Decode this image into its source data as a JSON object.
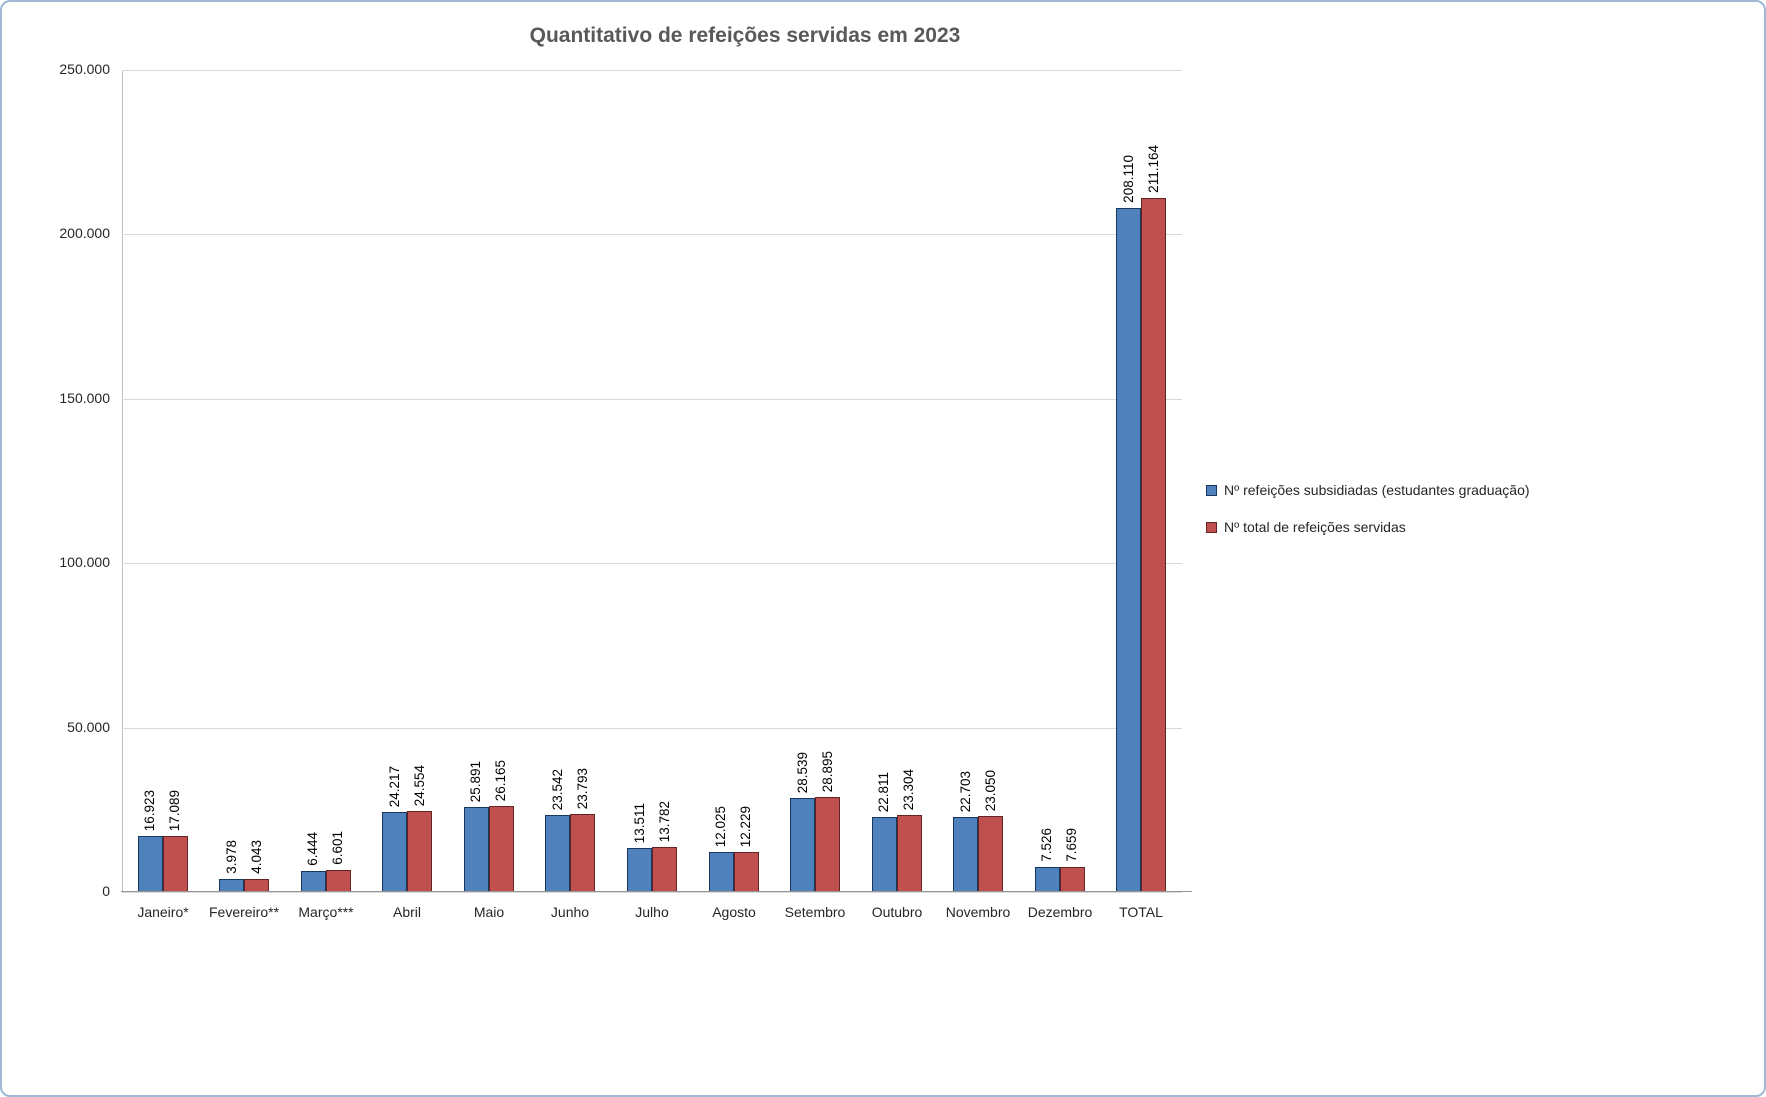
{
  "chart_data": {
    "type": "bar",
    "title": "Quantitativo de refeições servidas em 2023",
    "xlabel": "",
    "ylabel": "",
    "ylim": [
      0,
      250000
    ],
    "grid": true,
    "legend_position": "right",
    "yticks": [
      {
        "value": 0,
        "label": "0"
      },
      {
        "value": 50000,
        "label": "50.000"
      },
      {
        "value": 100000,
        "label": "100.000"
      },
      {
        "value": 150000,
        "label": "150.000"
      },
      {
        "value": 200000,
        "label": "200.000"
      },
      {
        "value": 250000,
        "label": "250.000"
      }
    ],
    "categories": [
      "Janeiro*",
      "Fevereiro**",
      "Março***",
      "Abril",
      "Maio",
      "Junho",
      "Julho",
      "Agosto",
      "Setembro",
      "Outubro",
      "Novembro",
      "Dezembro",
      "TOTAL"
    ],
    "series": [
      {
        "id": "subsidiadas",
        "name": "Nº refeições subsidiadas (estudantes graduação)",
        "color": "#4F81BD",
        "border_color": "#17375E",
        "values": [
          16923,
          3978,
          6444,
          24217,
          25891,
          23542,
          13511,
          12025,
          28539,
          22811,
          22703,
          7526,
          208110
        ],
        "labels": [
          "16.923",
          "3.978",
          "6.444",
          "24.217",
          "25.891",
          "23.542",
          "13.511",
          "12.025",
          "28.539",
          "22.811",
          "22.703",
          "7.526",
          "208.110"
        ]
      },
      {
        "id": "total",
        "name": "Nº total de refeições servidas",
        "color": "#C0504D",
        "border_color": "#632523",
        "values": [
          17089,
          4043,
          6601,
          24554,
          26165,
          23793,
          13782,
          12229,
          28895,
          23304,
          23050,
          7659,
          211164
        ],
        "labels": [
          "17.089",
          "4.043",
          "6.601",
          "24.554",
          "26.165",
          "23.793",
          "13.782",
          "12.229",
          "28.895",
          "23.304",
          "23.050",
          "7.659",
          "211.164"
        ]
      }
    ]
  }
}
